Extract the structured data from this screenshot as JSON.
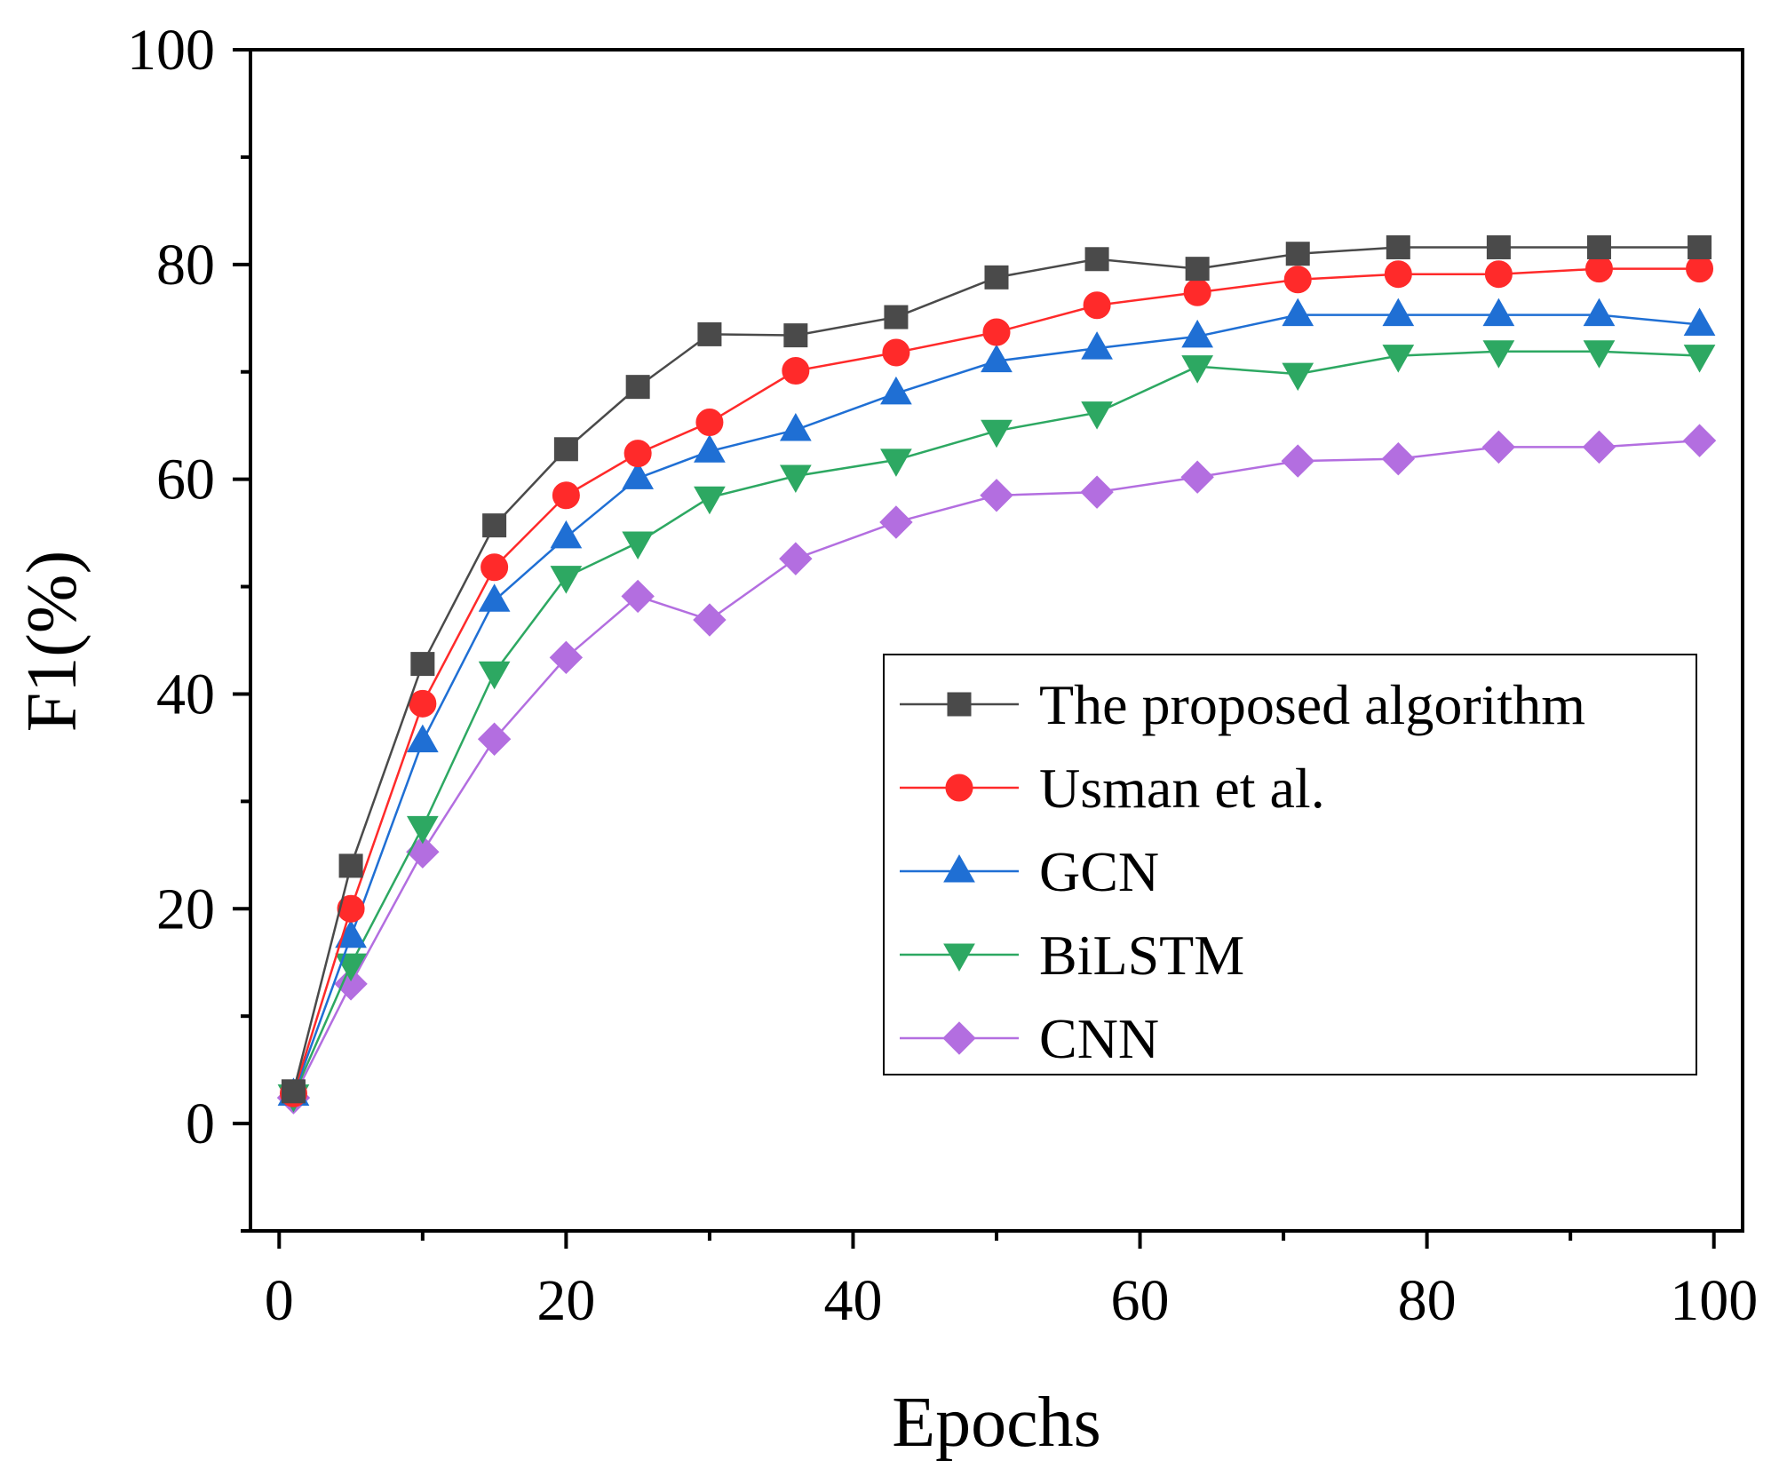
{
  "chart_data": {
    "type": "line",
    "xlabel": "Epochs",
    "ylabel": "F1(%)",
    "xlim": [
      -2,
      102
    ],
    "ylim": [
      -10,
      100
    ],
    "xticks": [
      0,
      20,
      40,
      60,
      80,
      100
    ],
    "xtick_labels": [
      "0",
      "20",
      "40",
      "60",
      "80",
      "100"
    ],
    "yticks": [
      0,
      20,
      40,
      60,
      80,
      100
    ],
    "ytick_labels": [
      "0",
      "20",
      "40",
      "60",
      "80",
      "100"
    ],
    "grid": false,
    "legend_position": "center-right",
    "x": [
      1,
      5,
      10,
      15,
      20,
      25,
      30,
      36,
      43,
      50,
      57,
      64,
      71,
      78,
      85,
      92,
      99
    ],
    "series": [
      {
        "name": "The proposed algorithm",
        "color": "#4a4a4a",
        "marker": "square",
        "values": [
          3.0,
          24.0,
          42.8,
          55.7,
          62.8,
          68.6,
          73.5,
          73.4,
          75.1,
          78.8,
          80.5,
          79.6,
          81.0,
          81.6,
          81.6,
          81.6,
          81.6
        ]
      },
      {
        "name": "Usman et al.",
        "color": "#ff2a2a",
        "marker": "circle",
        "values": [
          2.8,
          20.0,
          39.1,
          51.8,
          58.5,
          62.4,
          65.3,
          70.1,
          71.8,
          73.7,
          76.2,
          77.4,
          78.6,
          79.1,
          79.1,
          79.6,
          79.6
        ]
      },
      {
        "name": "GCN",
        "color": "#1f6fd4",
        "marker": "triangle-up",
        "values": [
          2.7,
          17.4,
          35.6,
          48.7,
          54.6,
          60.1,
          62.6,
          64.6,
          68.0,
          71.0,
          72.2,
          73.3,
          75.3,
          75.3,
          75.3,
          75.3,
          74.4
        ]
      },
      {
        "name": "BiLSTM",
        "color": "#2da862",
        "marker": "triangle-down",
        "values": [
          2.6,
          14.8,
          27.6,
          42.0,
          50.9,
          54.1,
          58.3,
          60.3,
          61.8,
          64.5,
          66.2,
          70.5,
          69.8,
          71.5,
          71.9,
          71.9,
          71.5
        ]
      },
      {
        "name": "CNN",
        "color": "#b36ee0",
        "marker": "diamond",
        "values": [
          2.4,
          13.0,
          25.3,
          35.8,
          43.4,
          49.1,
          46.9,
          52.6,
          56.0,
          58.5,
          58.8,
          60.2,
          61.7,
          61.9,
          63.0,
          63.0,
          63.6
        ]
      }
    ]
  }
}
